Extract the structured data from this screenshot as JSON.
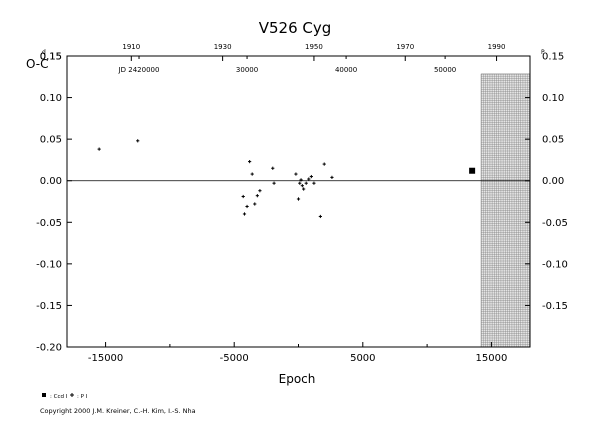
{
  "chart_data": {
    "type": "scatter",
    "title": "V526 Cyg",
    "ylabel": "O-C",
    "xlabel": "Epoch",
    "copyright": "Copyright 2000 J.M. Kreiner, C.-H. Kim, I.-S. Nha",
    "epoch_ticks": [
      "-15000",
      "-5000",
      "5000",
      "15000"
    ],
    "xlim": [
      -18000,
      18000
    ],
    "ylim": [
      -0.2,
      0.15
    ],
    "left_y_ticks": [
      "-0.20",
      "-0.15",
      "-0.10",
      "-0.05",
      "0.00",
      "0.05",
      "0.10",
      "0.15"
    ],
    "left_top_tick": "0.15",
    "left_top_sup": "d",
    "right_y_ticks": [
      "-0.15",
      "-0.10",
      "-0.05",
      "0.00",
      "0.05",
      "0.10"
    ],
    "right_top_tick": "0.15",
    "right_top_sup": "P",
    "top_year_ticks": [
      {
        "label": "1910",
        "epoch": -13000
      },
      {
        "label": "1930",
        "epoch": -5900
      },
      {
        "label": "1950",
        "epoch": 1200
      },
      {
        "label": "1970",
        "epoch": 8300
      },
      {
        "label": "1990",
        "epoch": 15400
      }
    ],
    "top_jd_ticks": [
      {
        "label": "JD 2420000",
        "epoch": -12400
      },
      {
        "label": "30000",
        "epoch": -4000
      },
      {
        "label": "40000",
        "epoch": 3700
      },
      {
        "label": "50000",
        "epoch": 11400
      }
    ],
    "shaded_region_start": 14200,
    "series": [
      {
        "name": "Ccd I",
        "marker": "square",
        "points": [
          [
            13500,
            0.012
          ]
        ]
      },
      {
        "name": "P I",
        "marker": "plus",
        "points": [
          [
            -15500,
            0.038
          ],
          [
            -12500,
            0.048
          ],
          [
            -4300,
            -0.019
          ],
          [
            -4200,
            -0.04
          ],
          [
            -4000,
            -0.031
          ],
          [
            -3800,
            0.023
          ],
          [
            -3600,
            0.008
          ],
          [
            -3400,
            -0.028
          ],
          [
            -3200,
            -0.018
          ],
          [
            -3000,
            -0.012
          ],
          [
            -2000,
            0.015
          ],
          [
            -1900,
            -0.003
          ],
          [
            -200,
            0.008
          ],
          [
            0,
            -0.022
          ],
          [
            100,
            -0.003
          ],
          [
            200,
            0.001
          ],
          [
            300,
            -0.006
          ],
          [
            400,
            -0.01
          ],
          [
            600,
            -0.003
          ],
          [
            800,
            0.002
          ],
          [
            1000,
            0.005
          ],
          [
            1200,
            -0.003
          ],
          [
            1700,
            -0.043
          ],
          [
            2000,
            0.02
          ],
          [
            2600,
            0.004
          ]
        ]
      }
    ],
    "legend": [
      {
        "marker": "square",
        "label": ": Ccd I"
      },
      {
        "marker": "plus",
        "label": ": P I"
      }
    ]
  }
}
